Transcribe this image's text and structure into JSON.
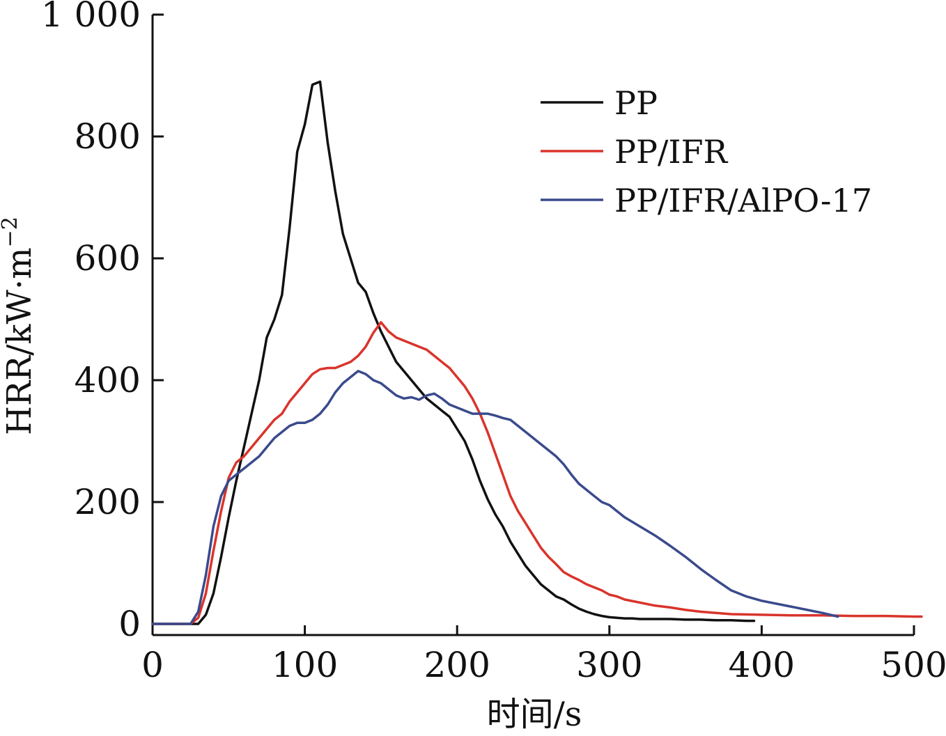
{
  "chart_data": {
    "type": "line",
    "title": "",
    "xlabel": "时间/s",
    "ylabel": "HRR/kW·m",
    "ylabel_superscript": "−2",
    "xlim": [
      0,
      500
    ],
    "ylim": [
      0,
      1000
    ],
    "x_ticks": [
      0,
      100,
      200,
      300,
      400,
      500
    ],
    "x_tick_labels": [
      "0",
      "100",
      "200",
      "300",
      "400",
      "500"
    ],
    "y_ticks": [
      0,
      200,
      400,
      600,
      800,
      1000
    ],
    "y_tick_labels": [
      "0",
      "200",
      "400",
      "600",
      "800",
      "1 000"
    ],
    "grid": false,
    "legend_position": "top-right",
    "series": [
      {
        "name": "PP",
        "color": "#111111",
        "x": [
          0,
          15,
          25,
          30,
          35,
          40,
          45,
          50,
          55,
          60,
          65,
          70,
          75,
          80,
          85,
          90,
          95,
          100,
          105,
          110,
          115,
          120,
          125,
          130,
          135,
          140,
          145,
          150,
          155,
          160,
          165,
          170,
          175,
          180,
          185,
          190,
          195,
          200,
          205,
          210,
          215,
          220,
          225,
          230,
          235,
          240,
          245,
          250,
          255,
          260,
          265,
          270,
          275,
          280,
          285,
          290,
          295,
          300,
          305,
          310,
          315,
          320,
          330,
          340,
          350,
          360,
          370,
          380,
          390,
          395
        ],
        "values": [
          0,
          0,
          0,
          0,
          15,
          50,
          110,
          175,
          235,
          290,
          345,
          400,
          470,
          500,
          540,
          650,
          775,
          820,
          885,
          890,
          790,
          710,
          640,
          600,
          560,
          545,
          510,
          480,
          455,
          430,
          415,
          400,
          385,
          370,
          360,
          350,
          340,
          320,
          300,
          270,
          235,
          205,
          180,
          160,
          135,
          115,
          95,
          80,
          65,
          55,
          45,
          40,
          32,
          25,
          20,
          16,
          13,
          11,
          10,
          9,
          9,
          8,
          8,
          8,
          7,
          7,
          6,
          6,
          5,
          5
        ]
      },
      {
        "name": "PP/IFR",
        "color": "#d9342b",
        "x": [
          0,
          15,
          25,
          30,
          35,
          40,
          45,
          50,
          55,
          60,
          65,
          70,
          75,
          80,
          85,
          90,
          95,
          100,
          105,
          110,
          115,
          120,
          125,
          130,
          135,
          140,
          145,
          150,
          155,
          160,
          165,
          170,
          175,
          180,
          185,
          190,
          195,
          200,
          205,
          210,
          215,
          220,
          225,
          230,
          235,
          240,
          245,
          250,
          255,
          260,
          265,
          270,
          275,
          280,
          285,
          290,
          295,
          300,
          305,
          310,
          320,
          330,
          340,
          350,
          360,
          370,
          380,
          400,
          420,
          440,
          460,
          480,
          500,
          505
        ],
        "values": [
          0,
          0,
          0,
          10,
          50,
          120,
          185,
          240,
          265,
          275,
          290,
          305,
          320,
          335,
          345,
          365,
          380,
          395,
          410,
          418,
          420,
          420,
          425,
          430,
          440,
          455,
          478,
          495,
          480,
          470,
          465,
          460,
          455,
          450,
          440,
          430,
          420,
          405,
          390,
          370,
          345,
          315,
          280,
          245,
          210,
          185,
          165,
          145,
          125,
          110,
          98,
          85,
          78,
          72,
          65,
          60,
          55,
          48,
          45,
          40,
          35,
          30,
          27,
          23,
          20,
          18,
          16,
          15,
          14,
          14,
          13,
          13,
          12,
          12
        ]
      },
      {
        "name": "PP/IFR/AlPO-17",
        "color": "#3a4a8c",
        "x": [
          0,
          15,
          25,
          30,
          35,
          40,
          45,
          50,
          55,
          60,
          65,
          70,
          75,
          80,
          85,
          90,
          95,
          100,
          105,
          110,
          115,
          120,
          125,
          130,
          135,
          140,
          145,
          150,
          155,
          160,
          165,
          170,
          175,
          180,
          185,
          190,
          195,
          200,
          205,
          210,
          215,
          220,
          225,
          230,
          235,
          240,
          245,
          250,
          255,
          260,
          265,
          270,
          275,
          280,
          285,
          290,
          295,
          300,
          305,
          310,
          320,
          330,
          340,
          350,
          360,
          370,
          380,
          390,
          400,
          420,
          440,
          450
        ],
        "values": [
          0,
          0,
          0,
          20,
          80,
          160,
          210,
          235,
          245,
          255,
          265,
          275,
          290,
          305,
          315,
          325,
          330,
          330,
          335,
          345,
          360,
          380,
          395,
          405,
          415,
          410,
          400,
          395,
          385,
          375,
          370,
          372,
          368,
          375,
          378,
          370,
          360,
          355,
          350,
          345,
          345,
          345,
          342,
          338,
          335,
          325,
          315,
          305,
          295,
          285,
          275,
          262,
          245,
          230,
          220,
          210,
          200,
          195,
          185,
          175,
          160,
          145,
          128,
          110,
          90,
          72,
          55,
          45,
          38,
          28,
          18,
          12
        ]
      }
    ]
  }
}
